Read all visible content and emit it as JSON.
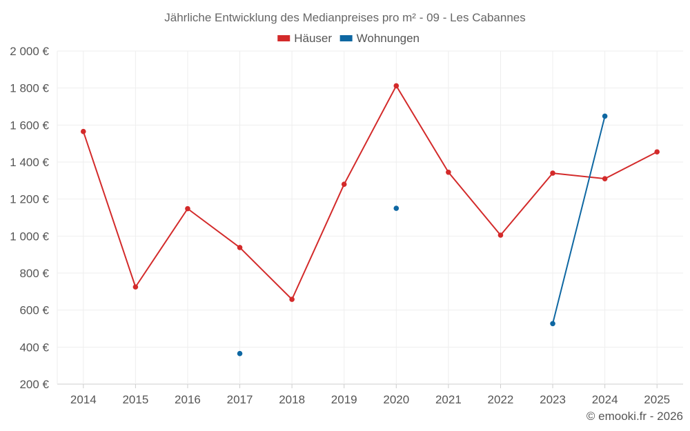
{
  "chart_data": {
    "type": "line",
    "title": "Jährliche Entwicklung des Medianpreises pro m² - 09 - Les Cabannes",
    "categories": [
      "2014",
      "2015",
      "2016",
      "2017",
      "2018",
      "2019",
      "2020",
      "2021",
      "2022",
      "2023",
      "2024",
      "2025"
    ],
    "ylim": [
      200,
      2000
    ],
    "yticks": [
      200,
      400,
      600,
      800,
      1000,
      1200,
      1400,
      1600,
      1800,
      2000
    ],
    "ytick_labels": [
      "200 €",
      "400 €",
      "600 €",
      "800 €",
      "1 000 €",
      "1 200 €",
      "1 400 €",
      "1 600 €",
      "1 800 €",
      "2 000 €"
    ],
    "grid": true,
    "legend_position": "top-center",
    "series": [
      {
        "name": "Häuser",
        "color": "#d32a2a",
        "values": [
          1565,
          725,
          1148,
          938,
          658,
          1280,
          1812,
          1345,
          1005,
          1340,
          1310,
          1455
        ]
      },
      {
        "name": "Wohnungen",
        "color": "#0e67a2",
        "values": [
          null,
          null,
          null,
          365,
          null,
          null,
          1150,
          null,
          null,
          527,
          1648,
          null
        ]
      }
    ]
  },
  "credit": "© emooki.fr - 2026"
}
